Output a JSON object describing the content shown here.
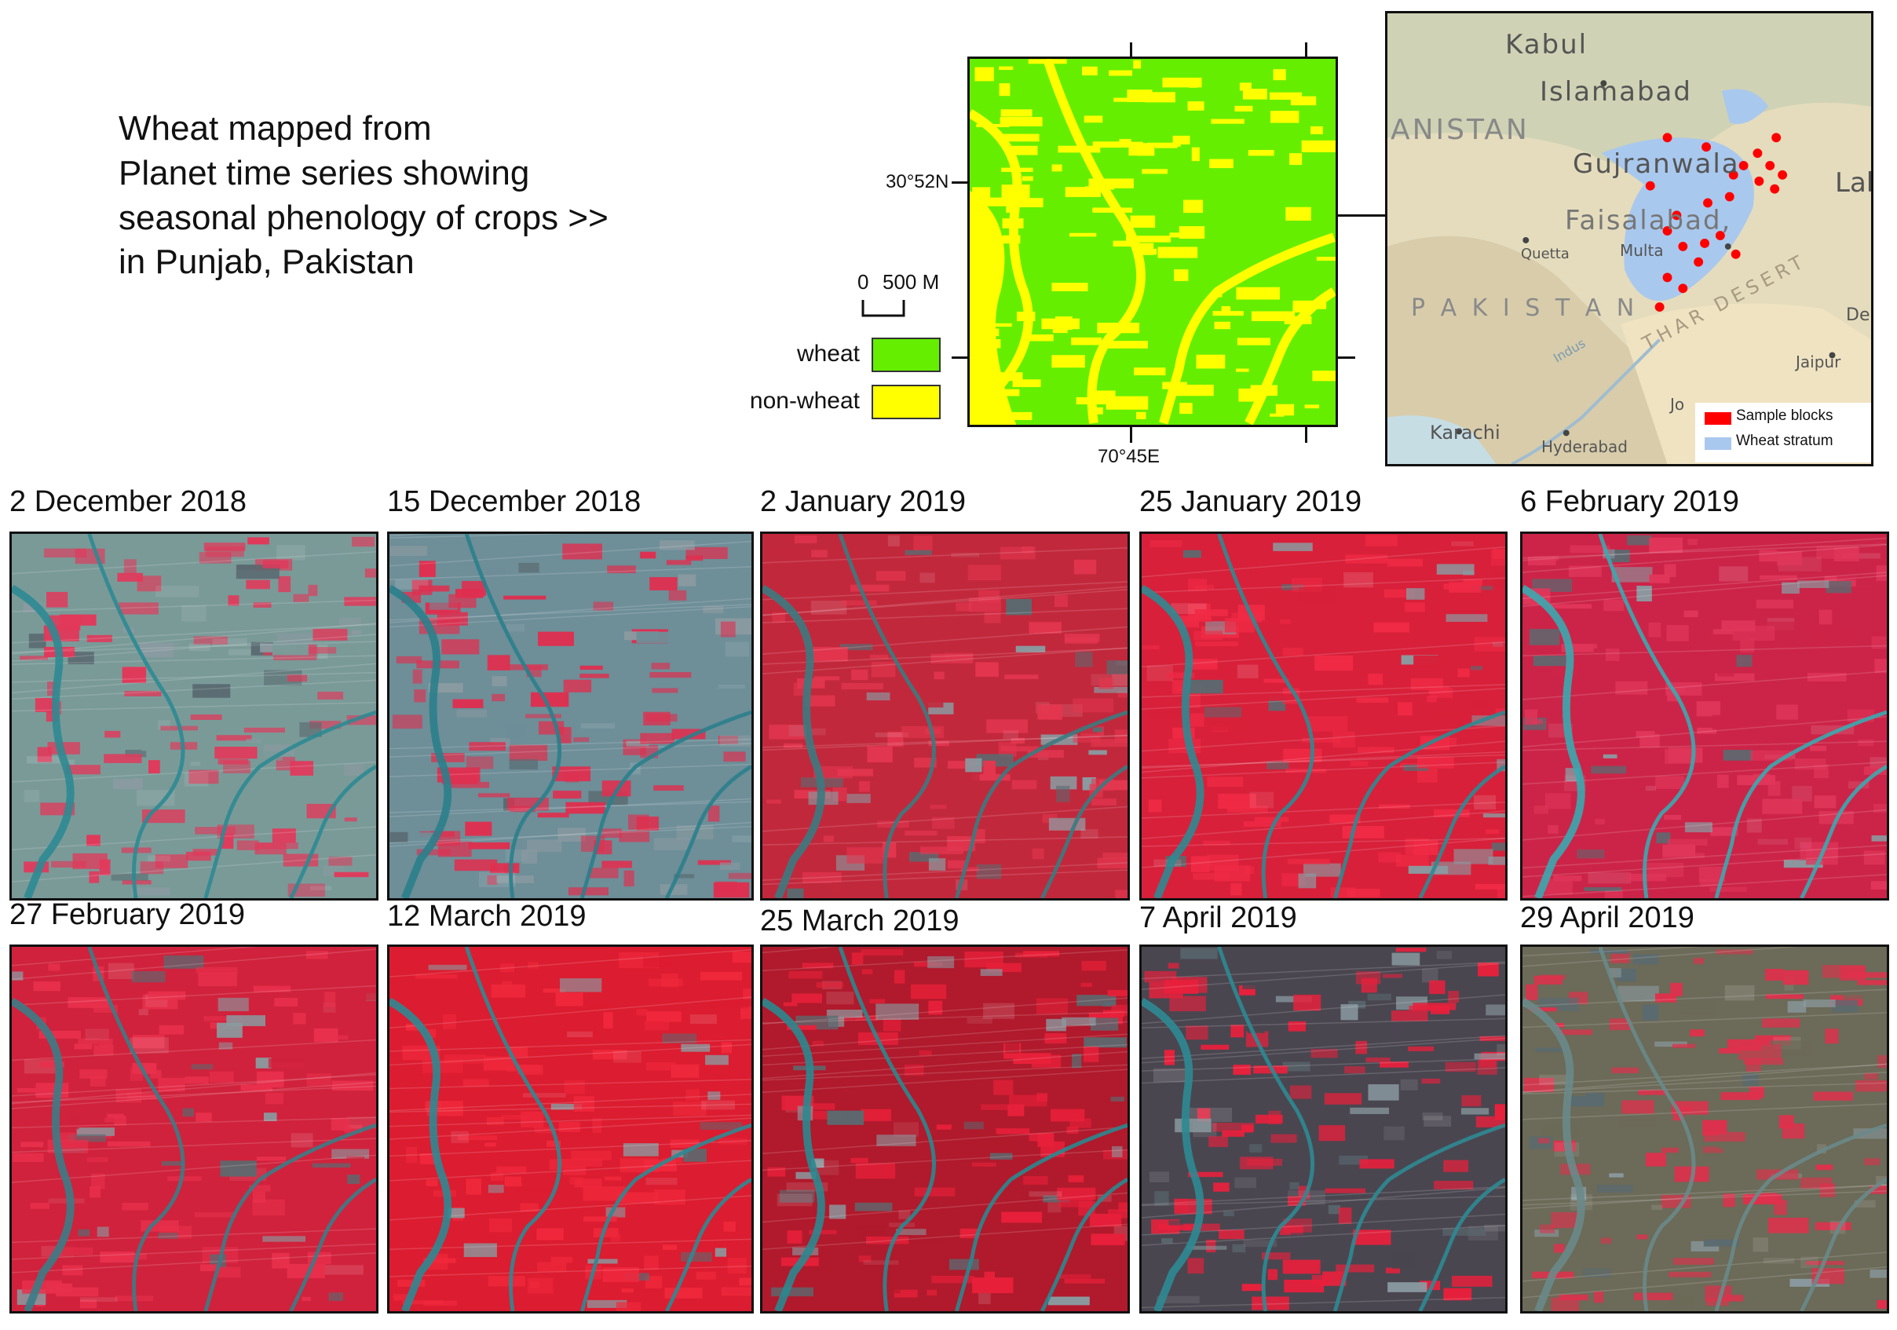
{
  "title_lines": [
    "Wheat mapped from",
    "Planet time series showing",
    "seasonal phenology of crops >>",
    "in Punjab, Pakistan"
  ],
  "scale_bar": {
    "label_zero": "0",
    "label_dist": "500 M"
  },
  "legend": {
    "wheat": {
      "label": "wheat",
      "color": "#66ee00"
    },
    "non_wheat": {
      "label": "non-wheat",
      "color": "#ffff00"
    }
  },
  "coords": {
    "lat": "30°52N",
    "lon": "70°45E"
  },
  "inset": {
    "places": {
      "kabul": "Kabul",
      "islamabad": "Islamabad",
      "afghanistan": "ANISTAN",
      "gujranwala": "Gujranwala",
      "lahore": "Lal",
      "faisalabad": "Faisalabad,",
      "quetta": "Quetta",
      "multan": "Multa",
      "pakistan": "P A K I S T A N",
      "indus": "Indus",
      "thar": "THAR DESERT",
      "de": "De",
      "jaipur": "Jaipur",
      "jo": "Jo",
      "karachi": "Karachi",
      "hyderabad": "Hyderabad"
    },
    "legend": {
      "sample": {
        "label": "Sample blocks",
        "color": "#ff0000"
      },
      "stratum": {
        "label": "Wheat stratum",
        "color": "#a9c8ee"
      }
    }
  },
  "dates": [
    "2 December 2018",
    "15 December 2018",
    "2 January 2019",
    "25 January 2019",
    "6 February 2019",
    "27 February 2019",
    "12 March 2019",
    "25 March 2019",
    "7 April 2019",
    "29 April 2019"
  ],
  "tile_colors": [
    {
      "base": "#7a9a98",
      "field": "#e2385a",
      "river": "#2e8a92"
    },
    {
      "base": "#6e8e98",
      "field": "#de3050",
      "river": "#2a7f8c"
    },
    {
      "base": "#c2283c",
      "field": "#e3364f",
      "river": "#3b7a80"
    },
    {
      "base": "#d8203a",
      "field": "#f02a45",
      "river": "#2e8a92"
    },
    {
      "base": "#cc2448",
      "field": "#e0365a",
      "river": "#39aab0"
    },
    {
      "base": "#d0223c",
      "field": "#e8304c",
      "river": "#3a7c86"
    },
    {
      "base": "#dc1c30",
      "field": "#f0283c",
      "river": "#2c8a94"
    },
    {
      "base": "#b01a2c",
      "field": "#e8203a",
      "river": "#2a8890"
    },
    {
      "base": "#4a4650",
      "field": "#e8203c",
      "river": "#2e8a92"
    },
    {
      "base": "#6c6a58",
      "field": "#e0304c",
      "river": "#6a8a8a"
    }
  ]
}
